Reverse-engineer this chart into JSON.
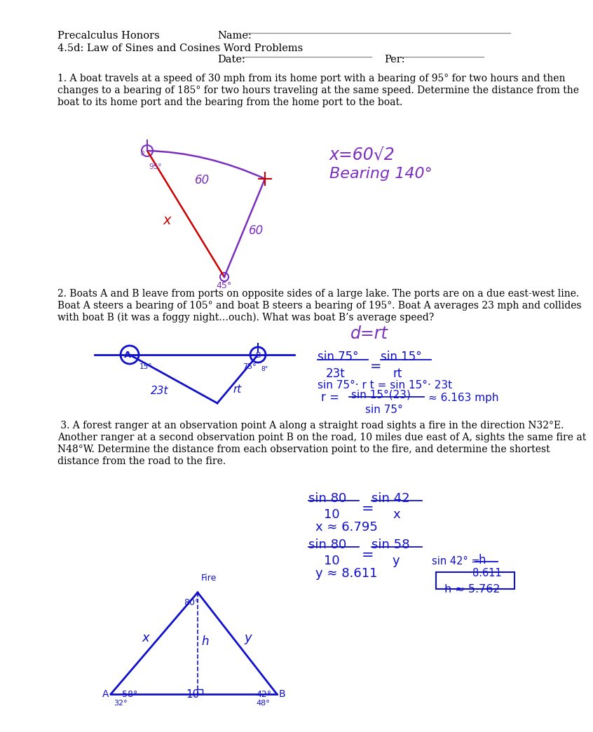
{
  "title_left": "Precalculus Honors",
  "title_right": "Name:",
  "subtitle_left": "4.5d: Law of Sines and Cosines Word Problems",
  "date_label": "Date:",
  "per_label": "Per:",
  "bg_color": "#ffffff",
  "problem1_line1": "1. A boat travels at a speed of 30 mph from its home port with a bearing of 95° for two hours and then",
  "problem1_line2": "changes to a bearing of 185° for two hours traveling at the same speed. Determine the distance from the",
  "problem1_line3": "boat to its home port and the bearing from the home port to the boat.",
  "problem2_line1": "2. Boats A and B leave from ports on opposite sides of a large lake. The ports are on a due east-west line.",
  "problem2_line2": "Boat A steers a bearing of 105° and boat B steers a bearing of 195°. Boat A averages 23 mph and collides",
  "problem2_line3": "with boat B (it was a foggy night…ouch). What was boat B’s average speed?",
  "problem3_line1": " 3. A forest ranger at an observation point A along a straight road sights a fire in the direction N32°E.",
  "problem3_line2": "Another ranger at a second observation point B on the road, 10 miles due east of A, sights the same fire at",
  "problem3_line3": "N48°W. Determine the distance from each observation point to the fire, and determine the shortest",
  "problem3_line4": "distance from the road to the fire.",
  "hc": "#7B2FBE",
  "rc": "#cc0000",
  "bc": "#1010cc",
  "black": "#000000"
}
